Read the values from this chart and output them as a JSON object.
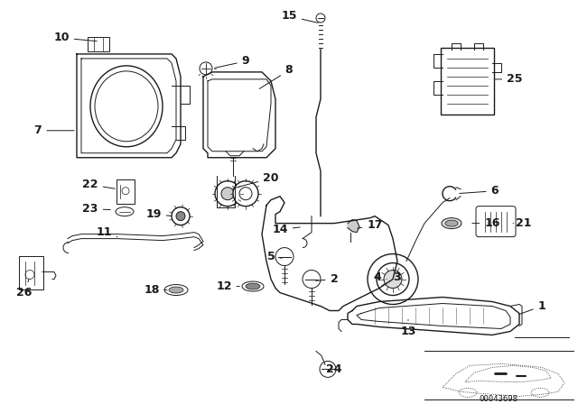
{
  "background_color": "#ffffff",
  "line_color": "#1a1a1a",
  "label_color": "#000000",
  "diagram_code": "00043698",
  "fig_w": 6.4,
  "fig_h": 4.48,
  "dpi": 100
}
